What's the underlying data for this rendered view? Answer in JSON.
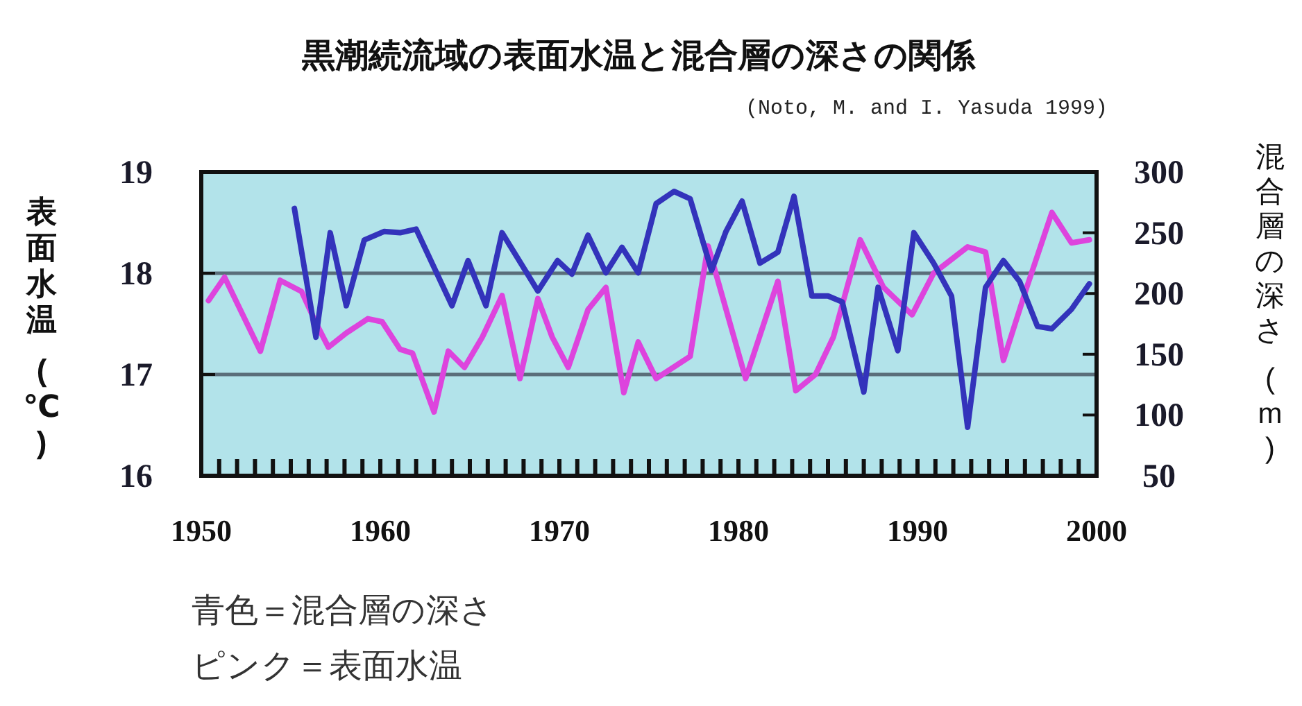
{
  "chart_data": {
    "type": "line",
    "title": "黒潮続流域の表面水温と混合層の深さの関係",
    "subtitle": "(Noto, M. and I. Yasuda 1999)",
    "ylabel": "表面水温 (℃)",
    "y2label": "混合層の深さ (m)",
    "annotations": [
      "青色＝混合層の深さ",
      "ピンク＝表面水温"
    ],
    "xlim": [
      1950,
      2000
    ],
    "xticks": [
      1950,
      {
        "value": 1951,
        "label": null
      },
      {
        "value": 1952,
        "label": null
      },
      {
        "value": 1953,
        "label": null
      },
      {
        "value": 1954,
        "label": null
      },
      {
        "value": 1955,
        "label": null
      },
      {
        "value": 1956,
        "label": null
      },
      {
        "value": 1957,
        "label": null
      },
      {
        "value": 1958,
        "label": null
      },
      {
        "value": 1959,
        "label": null
      },
      1960,
      {
        "value": 1961,
        "label": null
      },
      {
        "value": 1962,
        "label": null
      },
      {
        "value": 1963,
        "label": null
      },
      {
        "value": 1964,
        "label": null
      },
      {
        "value": 1965,
        "label": null
      },
      {
        "value": 1966,
        "label": null
      },
      {
        "value": 1967,
        "label": null
      },
      {
        "value": 1968,
        "label": null
      },
      {
        "value": 1969,
        "label": null
      },
      1970,
      {
        "value": 1971,
        "label": null
      },
      {
        "value": 1972,
        "label": null
      },
      {
        "value": 1973,
        "label": null
      },
      {
        "value": 1974,
        "label": null
      },
      {
        "value": 1975,
        "label": null
      },
      {
        "value": 1976,
        "label": null
      },
      {
        "value": 1977,
        "label": null
      },
      {
        "value": 1978,
        "label": null
      },
      {
        "value": 1979,
        "label": null
      },
      1980,
      {
        "value": 1981,
        "label": null
      },
      {
        "value": 1982,
        "label": null
      },
      {
        "value": 1983,
        "label": null
      },
      {
        "value": 1984,
        "label": null
      },
      {
        "value": 1985,
        "label": null
      },
      {
        "value": 1986,
        "label": null
      },
      {
        "value": 1987,
        "label": null
      },
      {
        "value": 1988,
        "label": null
      },
      {
        "value": 1989,
        "label": null
      },
      1990,
      {
        "value": 1991,
        "label": null
      },
      {
        "value": 1992,
        "label": null
      },
      {
        "value": 1993,
        "label": null
      },
      {
        "value": 1994,
        "label": null
      },
      {
        "value": 1995,
        "label": null
      },
      {
        "value": 1996,
        "label": null
      },
      {
        "value": 1997,
        "label": null
      },
      {
        "value": 1998,
        "label": null
      },
      {
        "value": 1999,
        "label": null
      },
      2000
    ],
    "ylim": [
      16,
      19
    ],
    "yticks": [
      16,
      17,
      18,
      19
    ],
    "y2lim": [
      50,
      300
    ],
    "y2ticks": [
      50,
      100,
      150,
      200,
      250,
      300
    ],
    "grid": "y",
    "series": [
      {
        "color": "#dd44dd",
        "x": [
          1950.4,
          1951.3,
          1953.3,
          1954.4,
          1955.6,
          1956.4,
          1957.1,
          1958.1,
          1959.3,
          1960.1,
          1961.1,
          1961.8,
          1963.0,
          1963.8,
          1964.7,
          1965.7,
          1966.8,
          1967.8,
          1968.8,
          1969.6,
          1970.5,
          1971.6,
          1972.6,
          1973.6,
          1974.4,
          1975.4,
          1977.3,
          1978.3,
          1980.4,
          1982.2,
          1983.2,
          1984.3,
          1985.3,
          1986.8,
          1988.1,
          1989.7,
          1990.9,
          1992.8,
          1993.8,
          1994.8,
          1996.1,
          1997.5,
          1998.6,
          1999.6
        ],
        "values": [
          17.73,
          17.96,
          17.23,
          17.93,
          17.82,
          17.51,
          17.27,
          17.41,
          17.55,
          17.52,
          17.25,
          17.21,
          16.63,
          17.23,
          17.07,
          17.37,
          17.78,
          16.96,
          17.75,
          17.37,
          17.07,
          17.64,
          17.86,
          16.82,
          17.32,
          16.96,
          17.18,
          18.27,
          16.96,
          17.92,
          16.84,
          17.0,
          17.37,
          18.33,
          17.86,
          17.59,
          18.0,
          18.26,
          18.21,
          17.14,
          17.86,
          18.6,
          18.3,
          18.33
        ]
      },
      {
        "color": "#3333bb",
        "axis": "y2",
        "x": [
          1955.2,
          1956.4,
          1957.2,
          1958.1,
          1959.1,
          1960.2,
          1961.1,
          1962.0,
          1964.0,
          1964.9,
          1965.9,
          1966.8,
          1968.8,
          1969.9,
          1970.7,
          1971.6,
          1972.6,
          1973.5,
          1974.4,
          1975.4,
          1976.4,
          1977.3,
          1978.5,
          1979.3,
          1980.2,
          1981.2,
          1982.2,
          1983.1,
          1984.1,
          1985.0,
          1985.8,
          1987.0,
          1987.8,
          1988.9,
          1989.8,
          1990.9,
          1991.9,
          1992.8,
          1993.8,
          1994.8,
          1995.7,
          1996.7,
          1997.5,
          1998.6,
          1999.6
        ],
        "values": [
          270,
          164,
          250,
          190,
          244,
          251,
          250,
          253,
          190,
          227,
          190,
          250,
          202,
          227,
          216,
          248,
          217,
          238,
          217,
          274,
          284,
          278,
          219,
          251,
          276,
          225,
          234,
          280,
          198,
          198,
          193,
          119,
          205,
          153,
          250,
          225,
          198,
          90,
          205,
          227,
          210,
          173,
          171,
          187,
          208
        ]
      }
    ]
  }
}
